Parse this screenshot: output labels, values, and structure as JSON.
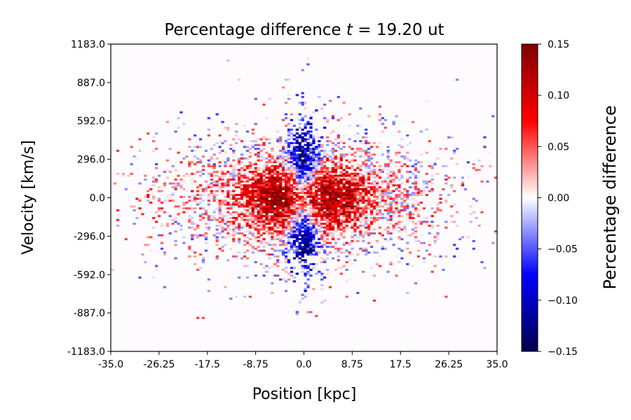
{
  "chart_data": {
    "type": "heatmap",
    "title": "Percentage difference t =  19.20 ut",
    "title_parts": {
      "prefix": "Percentage difference ",
      "var": "t",
      "suffix": " =  19.20 ut"
    },
    "xlabel": "Position [kpc]",
    "ylabel": "Velocity [km/s]",
    "xlim": [
      -35.0,
      35.0
    ],
    "ylim": [
      -1183.0,
      1183.0
    ],
    "x_ticks": [
      "-35.0",
      "-26.25",
      "-17.5",
      "-8.75",
      "0.0",
      "8.75",
      "17.5",
      "26.25",
      "35.0"
    ],
    "y_ticks": [
      "1183.0",
      "887.0",
      "592.0",
      "296.0",
      "0.0",
      "-296.0",
      "-592.0",
      "-887.0",
      "-1183.0"
    ],
    "colorbar": {
      "label": "Percentage difference",
      "range": [
        -0.15,
        0.15
      ],
      "ticks": [
        "0.15",
        "0.10",
        "0.05",
        "0.00",
        "−0.05",
        "−0.10",
        "−0.15"
      ],
      "colormap": "seismic",
      "colors": {
        "min": "#00004c",
        "low": "#0000ff",
        "mid": "#ffffff",
        "high": "#ff0000",
        "max": "#800000"
      }
    },
    "pattern": {
      "red_lobes_x": [
        -5.25,
        5.25
      ],
      "red_lobes_y": 0.0,
      "blue_ridge_x": 0.0,
      "blue_ridge_y": [
        -296.0,
        296.0
      ],
      "background_value": 0.0
    }
  }
}
